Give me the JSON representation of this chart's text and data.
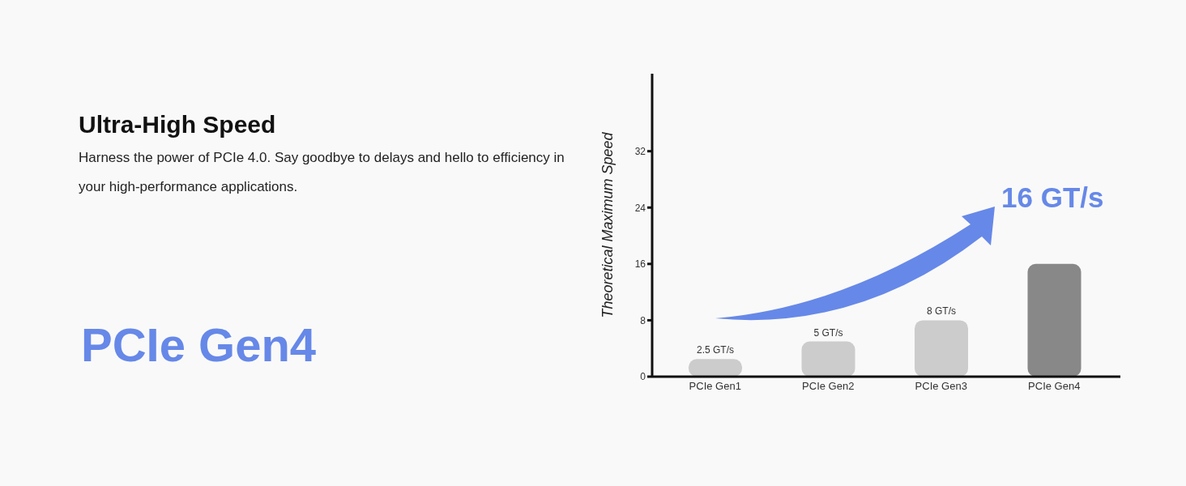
{
  "chart_data": {
    "type": "bar",
    "title": "Ultra-High Speed",
    "subtitle": "Harness the power of PCIe 4.0. Say goodbye to delays and hello to efficiency in your high-performance applications.",
    "ylabel": "Theoretical Maximum Speed",
    "categories": [
      "PCIe Gen1",
      "PCIe Gen2",
      "PCIe Gen3",
      "PCIe Gen4"
    ],
    "values": [
      2.5,
      5,
      8,
      16
    ],
    "colors": [
      "#cccccc",
      "#cccccc",
      "#cccccc",
      "#888888"
    ],
    "value_labels": [
      "2.5 GT/s",
      "5 GT/s",
      "8 GT/s",
      null
    ],
    "ylim": [
      0,
      43
    ],
    "yticks": [
      0,
      8,
      16,
      24,
      32
    ],
    "annotations": [
      "PCIe Gen4",
      "16 GT/s"
    ]
  }
}
